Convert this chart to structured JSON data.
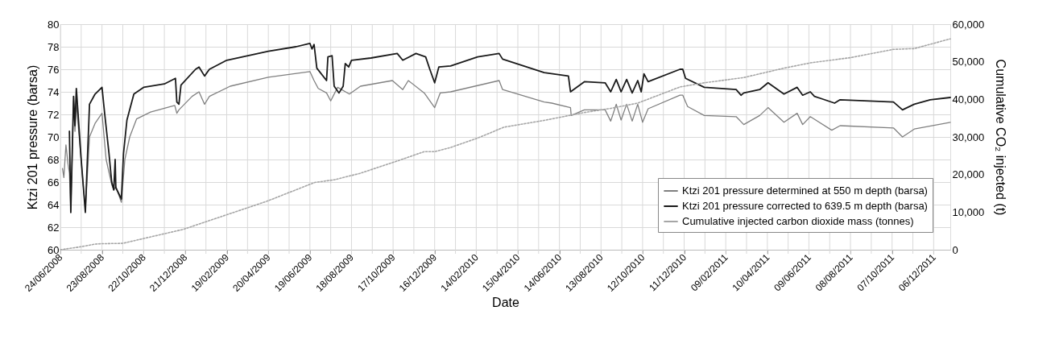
{
  "chart_data": {
    "type": "line",
    "xlabel": "Date",
    "ylabel": "Ktzi 201 pressure (barsa)",
    "y2label": "Cumulative CO₂ injected (t)",
    "xlim": [
      "2008-06-24",
      "2011-12-30"
    ],
    "xticks": [
      {
        "value": "2008-06-24",
        "label": "24/06/2008"
      },
      {
        "value": "2008-07-24",
        "label": null
      },
      {
        "value": "2008-08-23",
        "label": "23/08/2008"
      },
      {
        "value": "2008-09-22",
        "label": null
      },
      {
        "value": "2008-10-22",
        "label": "22/10/2008"
      },
      {
        "value": "2008-11-21",
        "label": null
      },
      {
        "value": "2008-12-21",
        "label": "21/12/2008"
      },
      {
        "value": "2009-01-20",
        "label": null
      },
      {
        "value": "2009-02-19",
        "label": "19/02/2009"
      },
      {
        "value": "2009-03-21",
        "label": null
      },
      {
        "value": "2009-04-20",
        "label": "20/04/2009"
      },
      {
        "value": "2009-05-20",
        "label": null
      },
      {
        "value": "2009-06-19",
        "label": "19/06/2009"
      },
      {
        "value": "2009-07-19",
        "label": null
      },
      {
        "value": "2009-08-18",
        "label": "18/08/2009"
      },
      {
        "value": "2009-09-17",
        "label": null
      },
      {
        "value": "2009-10-17",
        "label": "17/10/2009"
      },
      {
        "value": "2009-11-16",
        "label": null
      },
      {
        "value": "2009-12-16",
        "label": "16/12/2009"
      },
      {
        "value": "2010-01-15",
        "label": null
      },
      {
        "value": "2010-02-14",
        "label": "14/02/2010"
      },
      {
        "value": "2010-03-16",
        "label": null
      },
      {
        "value": "2010-04-15",
        "label": "15/04/2010"
      },
      {
        "value": "2010-05-15",
        "label": null
      },
      {
        "value": "2010-06-14",
        "label": "14/06/2010"
      },
      {
        "value": "2010-07-14",
        "label": null
      },
      {
        "value": "2010-08-13",
        "label": "13/08/2010"
      },
      {
        "value": "2010-09-12",
        "label": null
      },
      {
        "value": "2010-10-12",
        "label": "12/10/2010"
      },
      {
        "value": "2010-11-11",
        "label": null
      },
      {
        "value": "2010-12-11",
        "label": "11/12/2010"
      },
      {
        "value": "2011-01-10",
        "label": null
      },
      {
        "value": "2011-02-09",
        "label": "09/02/2011"
      },
      {
        "value": "2011-03-11",
        "label": null
      },
      {
        "value": "2011-04-10",
        "label": "10/04/2011"
      },
      {
        "value": "2011-05-10",
        "label": null
      },
      {
        "value": "2011-06-09",
        "label": "09/06/2011"
      },
      {
        "value": "2011-07-09",
        "label": null
      },
      {
        "value": "2011-08-08",
        "label": "08/08/2011"
      },
      {
        "value": "2011-09-07",
        "label": null
      },
      {
        "value": "2011-10-07",
        "label": "07/10/2011"
      },
      {
        "value": "2011-11-06",
        "label": null
      },
      {
        "value": "2011-12-06",
        "label": "06/12/2011"
      }
    ],
    "ylim": [
      60,
      80
    ],
    "yticks": [
      60,
      62,
      64,
      66,
      68,
      70,
      72,
      74,
      76,
      78,
      80
    ],
    "y2lim": [
      0,
      60000
    ],
    "y2ticks": [
      0,
      {
        "value": 10000,
        "label": "10,000"
      },
      {
        "value": 20000,
        "label": "20,000"
      },
      {
        "value": 30000,
        "label": "30,000"
      },
      {
        "value": 40000,
        "label": "40,000"
      },
      {
        "value": 50000,
        "label": "50,000"
      },
      {
        "value": 60000,
        "label": "60,000"
      }
    ],
    "grid": true,
    "legend": "bottom right",
    "series": [
      {
        "name": "Ktzi 201 pressure determined at 550 m depth (barsa)",
        "color": "#808080",
        "line_style": "solid",
        "x": [
          "2008-06-27",
          "2008-06-29",
          "2008-07-02",
          "2008-07-05",
          "2008-07-07",
          "2008-07-09",
          "2008-07-13",
          "2008-07-15",
          "2008-07-17",
          "2008-07-30",
          "2008-08-05",
          "2008-08-13",
          "2008-08-23",
          "2008-08-29",
          "2008-09-06",
          "2008-09-09",
          "2008-09-12",
          "2008-09-20",
          "2008-09-25",
          "2008-10-02",
          "2008-10-12",
          "2008-11-01",
          "2008-12-06",
          "2008-12-09",
          "2008-12-12",
          "2008-12-31",
          "2009-01-10",
          "2009-01-18",
          "2009-01-25",
          "2009-02-24",
          "2009-04-20",
          "2009-06-19",
          "2009-06-25",
          "2009-07-01",
          "2009-07-13",
          "2009-07-19",
          "2009-07-29",
          "2009-08-15",
          "2009-08-31",
          "2009-10-16",
          "2009-10-31",
          "2009-11-08",
          "2009-12-01",
          "2009-12-16",
          "2009-12-24",
          "2010-01-08",
          "2010-03-19",
          "2010-03-24",
          "2010-05-23",
          "2010-06-03",
          "2010-06-30",
          "2010-07-01",
          "2010-07-20",
          "2010-08-19",
          "2010-08-27",
          "2010-09-04",
          "2010-09-11",
          "2010-09-19",
          "2010-09-27",
          "2010-10-05",
          "2010-10-12",
          "2010-10-20",
          "2010-12-05",
          "2010-12-09",
          "2010-12-16",
          "2011-01-09",
          "2011-02-24",
          "2011-03-07",
          "2011-03-30",
          "2011-04-11",
          "2011-05-04",
          "2011-05-23",
          "2011-05-31",
          "2011-06-11",
          "2011-07-12",
          "2011-07-24",
          "2011-10-09",
          "2011-10-22",
          "2011-11-08",
          "2011-12-30"
        ],
        "values": [
          67.2,
          66.4,
          69.3,
          67.6,
          66.8,
          63.5,
          73.2,
          70.5,
          73.0,
          63.5,
          70.0,
          71.2,
          72.1,
          68.0,
          65.8,
          65.3,
          65.6,
          64.2,
          68.0,
          70.0,
          71.6,
          72.2,
          72.8,
          72.1,
          72.4,
          73.6,
          74.0,
          72.9,
          73.6,
          74.5,
          75.3,
          75.8,
          75.0,
          74.3,
          73.9,
          73.2,
          74.4,
          73.8,
          74.5,
          75.0,
          74.2,
          75.0,
          73.9,
          72.6,
          73.9,
          74.0,
          75.0,
          74.2,
          73.1,
          73.0,
          72.6,
          71.9,
          72.4,
          72.4,
          71.4,
          72.9,
          71.5,
          72.9,
          71.4,
          72.9,
          71.3,
          72.5,
          73.7,
          73.7,
          72.7,
          71.9,
          71.8,
          71.1,
          71.9,
          72.6,
          71.3,
          72.1,
          71.1,
          71.8,
          70.6,
          71.0,
          70.8,
          70.0,
          70.7,
          71.3
        ]
      },
      {
        "name": "Ktzi 201 pressure corrected to 639.5 m depth (barsa)",
        "color": "#1a1a1a",
        "line_style": "solid",
        "x": [
          "2008-07-07",
          "2008-07-09",
          "2008-07-13",
          "2008-07-15",
          "2008-07-17",
          "2008-07-24",
          "2008-07-30",
          "2008-08-05",
          "2008-08-13",
          "2008-08-23",
          "2008-08-27",
          "2008-09-02",
          "2008-09-06",
          "2008-09-09",
          "2008-09-11",
          "2008-09-12",
          "2008-09-20",
          "2008-09-23",
          "2008-09-28",
          "2008-10-08",
          "2008-10-22",
          "2008-11-21",
          "2008-12-07",
          "2008-12-09",
          "2008-12-12",
          "2008-12-15",
          "2009-01-05",
          "2009-01-10",
          "2009-01-18",
          "2009-01-25",
          "2009-02-19",
          "2009-04-20",
          "2009-05-30",
          "2009-06-19",
          "2009-06-22",
          "2009-06-25",
          "2009-06-29",
          "2009-07-13",
          "2009-07-15",
          "2009-07-21",
          "2009-07-24",
          "2009-07-31",
          "2009-08-06",
          "2009-08-09",
          "2009-08-14",
          "2009-08-18",
          "2009-09-15",
          "2009-10-23",
          "2009-10-31",
          "2009-11-19",
          "2009-12-03",
          "2009-12-09",
          "2009-12-16",
          "2009-12-22",
          "2010-01-08",
          "2010-02-16",
          "2010-03-19",
          "2010-03-24",
          "2010-05-23",
          "2010-06-27",
          "2010-06-30",
          "2010-07-20",
          "2010-08-19",
          "2010-08-27",
          "2010-09-04",
          "2010-09-11",
          "2010-09-19",
          "2010-09-27",
          "2010-10-05",
          "2010-10-10",
          "2010-10-14",
          "2010-10-20",
          "2010-12-05",
          "2010-12-09",
          "2010-12-13",
          "2011-01-09",
          "2011-02-24",
          "2011-03-03",
          "2011-03-07",
          "2011-03-30",
          "2011-04-11",
          "2011-05-04",
          "2011-05-23",
          "2011-05-31",
          "2011-06-11",
          "2011-06-17",
          "2011-07-16",
          "2011-07-24",
          "2011-10-09",
          "2011-10-22",
          "2011-11-08",
          "2011-12-01",
          "2011-12-30"
        ],
        "values": [
          70.5,
          63.3,
          73.6,
          71.0,
          74.3,
          68.0,
          63.3,
          72.9,
          73.8,
          74.4,
          72.0,
          68.6,
          66.0,
          65.3,
          68.0,
          65.5,
          64.5,
          68.5,
          71.5,
          73.8,
          74.4,
          74.7,
          75.2,
          73.1,
          72.9,
          74.6,
          76.0,
          76.2,
          75.4,
          76.0,
          76.8,
          77.6,
          78.0,
          78.3,
          77.8,
          78.2,
          76.1,
          75.0,
          77.1,
          77.2,
          74.5,
          73.9,
          74.5,
          76.5,
          76.2,
          76.8,
          77.0,
          77.4,
          76.8,
          77.4,
          77.1,
          76.0,
          74.8,
          76.2,
          76.3,
          77.1,
          77.4,
          76.9,
          75.7,
          75.4,
          74.0,
          74.9,
          74.8,
          74.0,
          75.1,
          74.0,
          75.1,
          73.9,
          75.0,
          74.0,
          75.6,
          74.9,
          76.0,
          76.0,
          75.2,
          74.4,
          74.2,
          73.7,
          73.9,
          74.2,
          74.8,
          73.8,
          74.4,
          73.7,
          74.0,
          73.6,
          73.0,
          73.3,
          73.1,
          72.4,
          72.9,
          73.3,
          73.5
        ]
      },
      {
        "name": "Cumulative injected carbon dioxide mass (tonnes)",
        "color": "#a6a6a6",
        "line_style": "dotted",
        "axis": "y2",
        "x": [
          "2008-06-24",
          "2008-07-24",
          "2008-08-13",
          "2008-08-23",
          "2008-09-22",
          "2008-12-18",
          "2009-04-18",
          "2009-06-26",
          "2009-07-24",
          "2009-08-30",
          "2009-10-23",
          "2009-12-01",
          "2009-12-16",
          "2010-01-08",
          "2010-02-16",
          "2010-03-26",
          "2010-05-23",
          "2010-07-20",
          "2010-08-27",
          "2010-10-05",
          "2010-12-05",
          "2011-01-09",
          "2011-03-07",
          "2011-05-04",
          "2011-06-11",
          "2011-08-08",
          "2011-10-09",
          "2011-11-08",
          "2011-12-30"
        ],
        "values": [
          0,
          800,
          1500,
          1600,
          1700,
          5400,
          12900,
          17900,
          18600,
          20300,
          23600,
          26100,
          26100,
          27200,
          29700,
          32600,
          34400,
          36500,
          37600,
          39000,
          43300,
          44400,
          45800,
          48300,
          49700,
          51100,
          53300,
          53500,
          56100
        ]
      }
    ]
  }
}
